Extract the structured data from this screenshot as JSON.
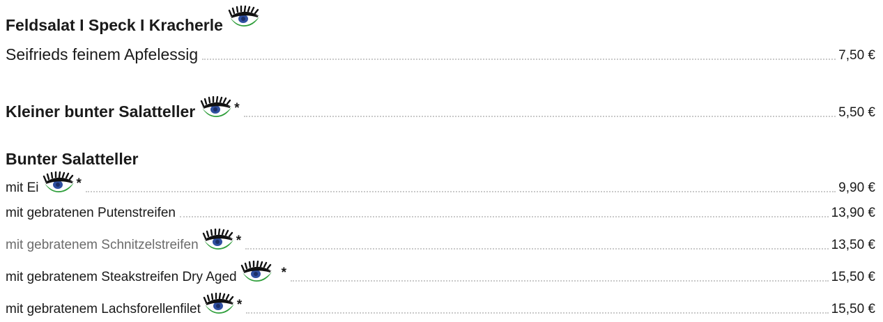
{
  "sections": [
    {
      "title": "Feldsalat I Speck I Kracherle",
      "title_icon": "vegetarian-eye-icon",
      "items": [
        {
          "name": "Seifrieds feinem Apfelessig",
          "price": "7,50 €",
          "icon": "",
          "star": ""
        }
      ]
    },
    {
      "title": "Kleiner bunter Salatteller",
      "title_icon": "vegetarian-eye-icon",
      "star": "*",
      "price": "5,50 €"
    },
    {
      "title": "Bunter Salatteller",
      "items": [
        {
          "name": "mit Ei",
          "price": "9,90 €",
          "icon": "vegetarian-eye-icon",
          "star": "*"
        },
        {
          "name": "mit gebratenen Putenstreifen",
          "price": "13,90 €",
          "icon": "",
          "star": ""
        },
        {
          "name": "mit gebratenem Schnitzelstreifen",
          "price": "13,50 €",
          "icon": "vegetarian-eye-icon",
          "star": "*"
        },
        {
          "name": "mit gebratenem Steakstreifen Dry Aged",
          "price": "15,50 €",
          "icon": "vegetarian-eye-icon",
          "star": "*"
        },
        {
          "name": "mit gebratenem Lachsforellenfilet",
          "price": "15,50 €",
          "icon": "vegetarian-eye-icon",
          "star": "*"
        }
      ]
    }
  ],
  "colors": {
    "text": "#1a1a1a",
    "muted_text": "#6b6b6b",
    "leader_dots": "#c9c9c9",
    "eye_green": "#2e9e3a",
    "eye_iris": "#2f4fa0",
    "eye_lash": "#111111"
  }
}
